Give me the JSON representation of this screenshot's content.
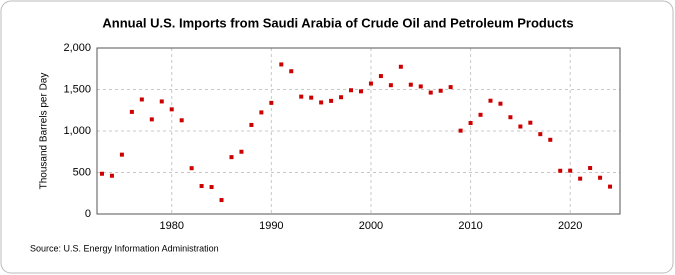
{
  "chart_data": {
    "type": "scatter",
    "title": "Annual U.S. Imports from Saudi Arabia of Crude Oil and Petroleum Products",
    "y_label": "Thousand Barrels per Day",
    "source": "Source: U.S. Energy Information Administration",
    "color": "#cc0000",
    "grid": true,
    "x": [
      1973,
      1974,
      1975,
      1976,
      1977,
      1978,
      1979,
      1980,
      1981,
      1982,
      1983,
      1984,
      1985,
      1986,
      1987,
      1988,
      1989,
      1990,
      1991,
      1992,
      1993,
      1994,
      1995,
      1996,
      1997,
      1998,
      1999,
      2000,
      2001,
      2002,
      2003,
      2004,
      2005,
      2006,
      2007,
      2008,
      2009,
      2010,
      2011,
      2012,
      2013,
      2014,
      2015,
      2016,
      2017,
      2018,
      2019,
      2020,
      2021,
      2022,
      2023,
      2024
    ],
    "values": [
      485,
      461,
      715,
      1230,
      1380,
      1140,
      1356,
      1261,
      1129,
      552,
      337,
      325,
      168,
      685,
      750,
      1073,
      1224,
      1339,
      1802,
      1720,
      1414,
      1402,
      1344,
      1363,
      1407,
      1491,
      1478,
      1572,
      1662,
      1552,
      1774,
      1558,
      1537,
      1463,
      1485,
      1529,
      1004,
      1096,
      1195,
      1365,
      1329,
      1166,
      1054,
      1100,
      962,
      894,
      521,
      522,
      426,
      554,
      437,
      330
    ],
    "xlim": [
      1972.5,
      2025
    ],
    "xticks": [
      1980,
      1990,
      2000,
      2010,
      2020
    ],
    "ylim": [
      0,
      2000
    ],
    "yticks": [
      0,
      500,
      {
        "value": 1000,
        "label": "1,000"
      },
      {
        "value": 1500,
        "label": "1,500"
      },
      {
        "value": 2000,
        "label": "2,000"
      }
    ]
  }
}
